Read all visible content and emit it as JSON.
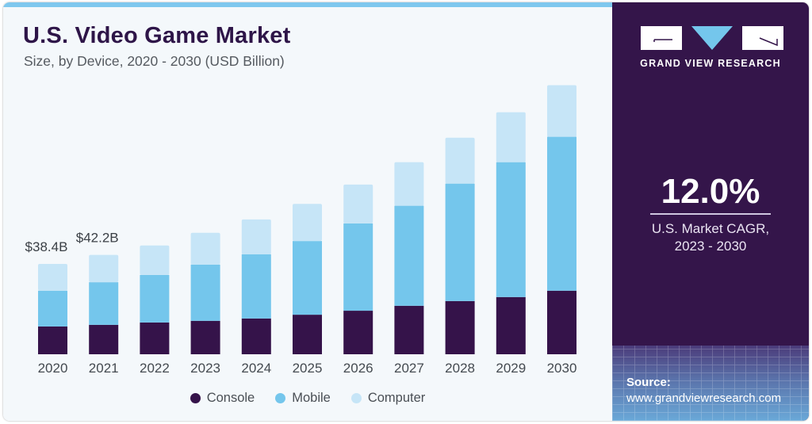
{
  "header": {
    "title": "U.S. Video Game Market",
    "subtitle": "Size, by Device, 2020 - 2030 (USD Billion)"
  },
  "brand": {
    "name": "GRAND VIEW RESEARCH",
    "logo_icon": "gvr-logo-icon"
  },
  "stat": {
    "value": "12.0%",
    "label_line1": "U.S. Market CAGR,",
    "label_line2": "2023 - 2030"
  },
  "source": {
    "label": "Source:",
    "url": "www.grandviewresearch.com"
  },
  "colors": {
    "console": "#35134a",
    "mobile": "#74c6ec",
    "computer": "#c6e5f7",
    "accent_panel": "#34154a",
    "title": "#2e1548"
  },
  "chart_data": {
    "type": "bar",
    "stacked": true,
    "title": "U.S. Video Game Market",
    "subtitle": "Size, by Device, 2020 - 2030 (USD Billion)",
    "xlabel": "",
    "ylabel": "",
    "ylim": [
      0,
      120
    ],
    "grid": false,
    "legend_position": "bottom",
    "categories": [
      "2020",
      "2021",
      "2022",
      "2023",
      "2024",
      "2025",
      "2026",
      "2027",
      "2028",
      "2029",
      "2030"
    ],
    "series": [
      {
        "name": "Console",
        "color": "#35134a",
        "values": [
          11.8,
          12.5,
          13.5,
          14.2,
          15.2,
          16.8,
          18.5,
          20.6,
          22.6,
          24.3,
          27.0
        ]
      },
      {
        "name": "Mobile",
        "color": "#74c6ec",
        "values": [
          15.2,
          18.1,
          20.2,
          23.9,
          27.3,
          31.3,
          37.1,
          42.5,
          49.9,
          57.3,
          65.4
        ]
      },
      {
        "name": "Computer",
        "color": "#c6e5f7",
        "values": [
          11.4,
          11.6,
          12.5,
          13.5,
          14.8,
          15.8,
          16.5,
          18.5,
          19.5,
          21.2,
          21.9
        ]
      }
    ],
    "annotations": [
      {
        "category": "2020",
        "text": "$38.4B"
      },
      {
        "category": "2021",
        "text": "$42.2B"
      }
    ]
  }
}
